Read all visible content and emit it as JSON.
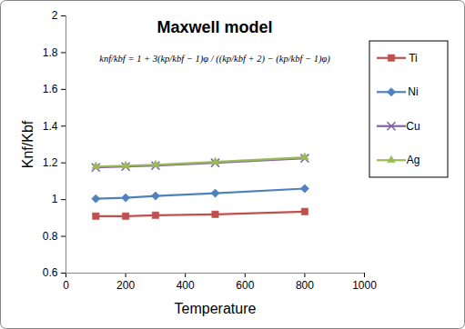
{
  "chart_data": {
    "type": "line",
    "title": "Maxwell model",
    "annotations": [
      "knf/kbf = 1 + 3(kp/kbf − 1)φ / ((kp/kbf + 2) − (kp/kbf − 1)φ)"
    ],
    "x_label": "Temperature",
    "y_label": "Knf/Kbf",
    "x": [
      100,
      200,
      300,
      500,
      800
    ],
    "series": [
      {
        "name": "Ti",
        "color": "#c0504d",
        "marker": "square",
        "values": [
          0.91,
          0.91,
          0.915,
          0.92,
          0.935
        ]
      },
      {
        "name": "Ni",
        "color": "#4f81bd",
        "marker": "diamond",
        "values": [
          1.005,
          1.01,
          1.02,
          1.035,
          1.06
        ]
      },
      {
        "name": "Cu",
        "color": "#8064a2",
        "marker": "x",
        "values": [
          1.175,
          1.18,
          1.185,
          1.2,
          1.225
        ]
      },
      {
        "name": "Ag",
        "color": "#9bbb59",
        "marker": "triangle",
        "values": [
          1.18,
          1.185,
          1.19,
          1.205,
          1.23
        ]
      }
    ],
    "xlim": [
      0,
      1000
    ],
    "xticks": [
      0,
      200,
      400,
      600,
      800,
      1000
    ],
    "ylim": [
      0.6,
      2
    ],
    "yticks": [
      0.6,
      0.8,
      1,
      1.2,
      1.4,
      1.6,
      1.8,
      2
    ],
    "grid": false,
    "legend": "right"
  }
}
